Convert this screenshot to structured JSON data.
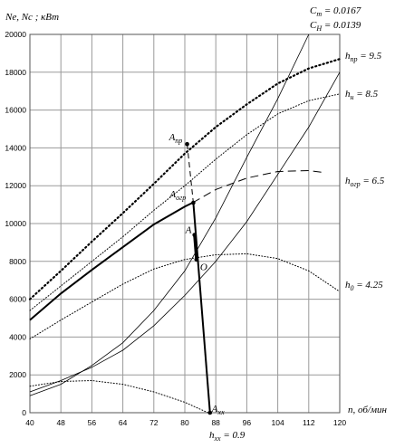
{
  "chart_data": {
    "type": "line",
    "ylabel": "Ne, Nc ; кВт",
    "xlabel": "n, об/мин",
    "xlim": [
      40,
      120
    ],
    "ylim": [
      0,
      20000
    ],
    "x_ticks": [
      40,
      48,
      56,
      64,
      72,
      80,
      88,
      96,
      104,
      112,
      120
    ],
    "y_ticks": [
      0,
      2000,
      4000,
      6000,
      8000,
      10000,
      12000,
      14000,
      16000,
      18000,
      20000
    ],
    "grid": true,
    "coefficients": {
      "ct": "Cт = 0.0167",
      "ch": "CН = 0.0139"
    },
    "bottom_label": "hxx = 0.9",
    "series": [
      {
        "name": "hпр = 9.5",
        "style": "dotted-bold",
        "color": "#000000",
        "x": [
          40,
          48,
          56,
          64,
          72,
          80,
          88,
          96,
          104,
          112,
          120
        ],
        "y": [
          6000,
          7500,
          9050,
          10550,
          12100,
          13700,
          15100,
          16300,
          17400,
          18200,
          18700
        ]
      },
      {
        "name": "hн = 8.5",
        "style": "dotted",
        "color": "#000000",
        "x": [
          40,
          48,
          56,
          64,
          72,
          80,
          88,
          96,
          104,
          112,
          120
        ],
        "y": [
          5400,
          6700,
          8000,
          9300,
          10700,
          12000,
          13400,
          14700,
          15800,
          16500,
          16850
        ]
      },
      {
        "name": "hогр = 6.5",
        "style": "solid-bold+dashed",
        "color": "#000000",
        "x": [
          40,
          48,
          56,
          64,
          72,
          80,
          82,
          88,
          96,
          104,
          112,
          116
        ],
        "y": [
          4900,
          6300,
          7550,
          8750,
          9950,
          10900,
          11100,
          11800,
          12400,
          12750,
          12800,
          12700
        ]
      },
      {
        "name": "h0 = 4.25",
        "style": "dotted",
        "color": "#000000",
        "x": [
          40,
          48,
          56,
          64,
          72,
          80,
          88,
          96,
          104,
          112,
          120
        ],
        "y": [
          3900,
          4900,
          5850,
          6800,
          7600,
          8100,
          8350,
          8400,
          8150,
          7500,
          6400
        ]
      },
      {
        "name": "hxx = 0.9",
        "style": "dotted",
        "color": "#000000",
        "x": [
          40,
          48,
          56,
          64,
          72,
          80,
          86
        ],
        "y": [
          1400,
          1650,
          1700,
          1500,
          1100,
          550,
          0
        ]
      },
      {
        "name": "Nc (steep)",
        "style": "solid-thin",
        "color": "#000000",
        "x": [
          40,
          48,
          56,
          64,
          72,
          80,
          88,
          96,
          104,
          112
        ],
        "y": [
          900,
          1500,
          2500,
          3700,
          5400,
          7500,
          10300,
          13500,
          16600,
          20000
        ]
      },
      {
        "name": "Nc (mild)",
        "style": "solid-thin",
        "color": "#000000",
        "x": [
          40,
          48,
          56,
          64,
          72,
          80,
          88,
          96,
          104,
          112,
          120
        ],
        "y": [
          1100,
          1700,
          2400,
          3300,
          4600,
          6200,
          8000,
          10100,
          12600,
          15100,
          18000
        ]
      }
    ],
    "operating_points": [
      {
        "label": "Aпр",
        "x": 80.6,
        "y": 14200
      },
      {
        "label": "Aогр",
        "x": 82.2,
        "y": 11100
      },
      {
        "label": "A",
        "x": 82.5,
        "y": 9400
      },
      {
        "label": "O",
        "x": 83.0,
        "y": 8100
      },
      {
        "label": "Axx",
        "x": 86.5,
        "y": 0
      }
    ]
  }
}
